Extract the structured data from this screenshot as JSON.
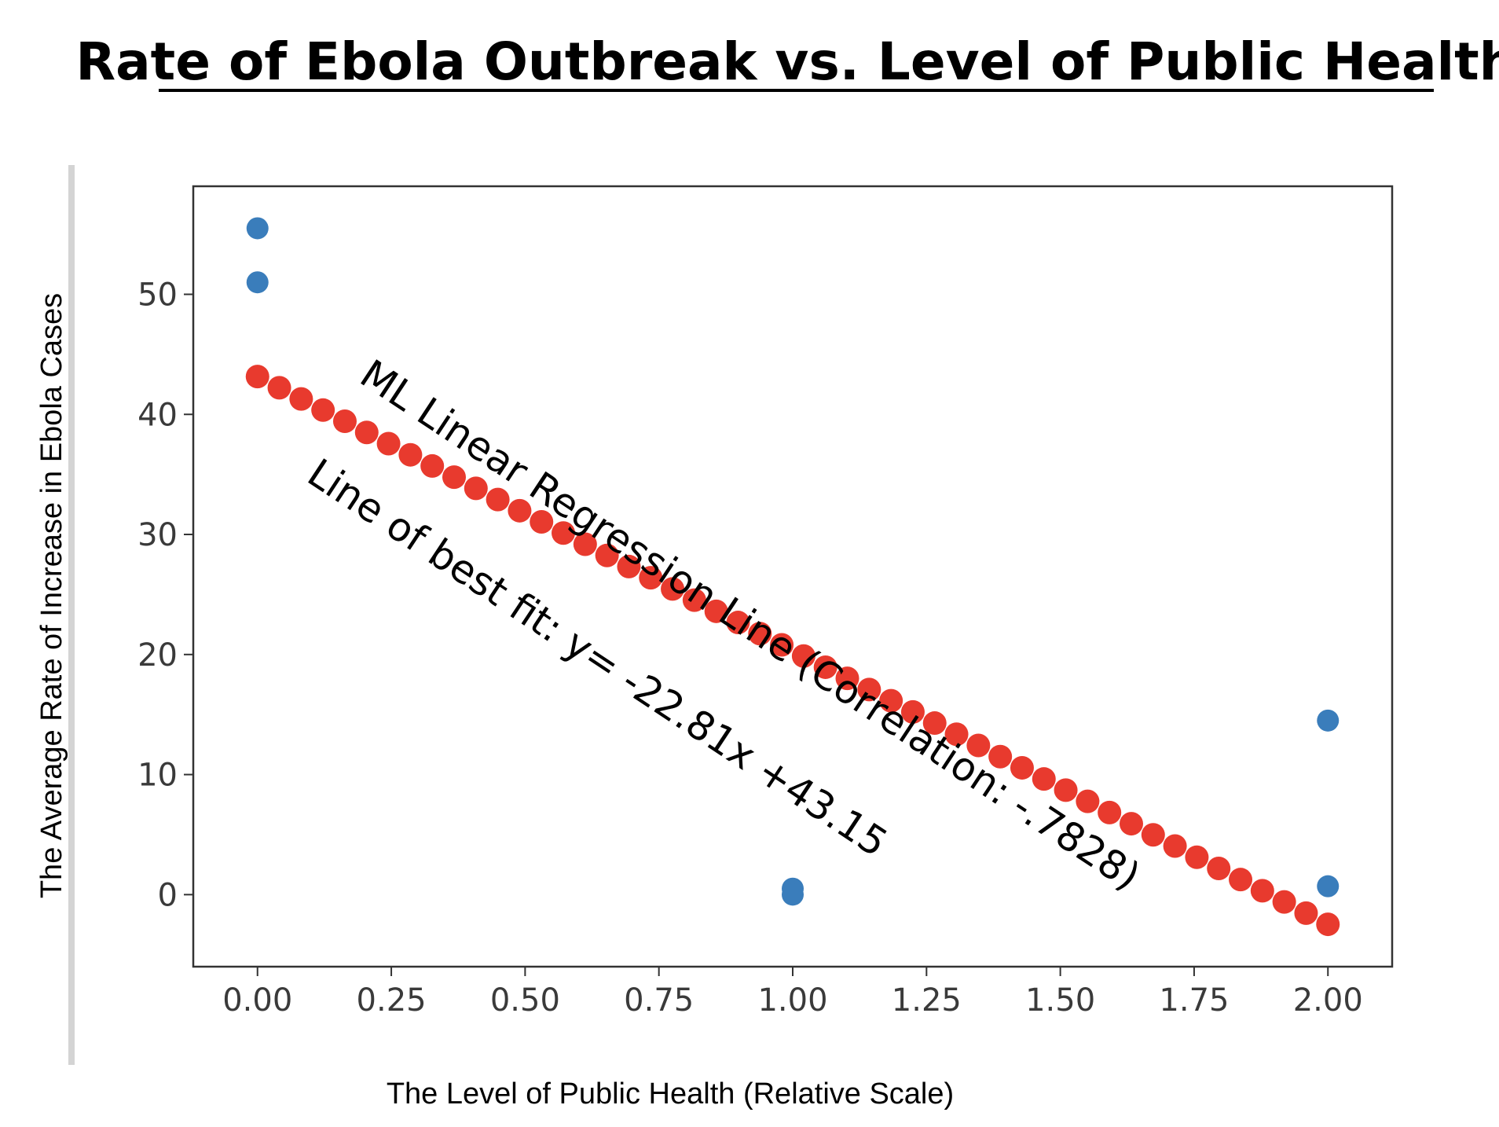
{
  "chart_data": {
    "type": "scatter",
    "title": "Rate of Ebola Outbreak vs. Level of Public Health",
    "xlabel": "The Level of Public Health (Relative Scale)",
    "ylabel": "The Average Rate of Increase in Ebola Cases",
    "xlim": [
      -0.12,
      2.12
    ],
    "ylim": [
      -6,
      59
    ],
    "x_ticks": [
      "0.00",
      "0.25",
      "0.50",
      "0.75",
      "1.00",
      "1.25",
      "1.50",
      "1.75",
      "2.00"
    ],
    "y_ticks": [
      "0",
      "10",
      "20",
      "30",
      "40",
      "50"
    ],
    "grid": false,
    "series": [
      {
        "kind": "points",
        "color": "#3a7dbb",
        "x": [
          0,
          0,
          1,
          1,
          2,
          2
        ],
        "y": [
          55.5,
          51.0,
          0.5,
          0.0,
          14.5,
          0.7
        ]
      },
      {
        "kind": "regression",
        "color": "#e83a2e",
        "slope": -22.81,
        "intercept": 43.15,
        "x_start": 0,
        "x_end": 2,
        "marker_count": 50
      }
    ],
    "annotations": [
      "ML Linear Regression Line (Correlation: -.7828)",
      "Line of best fit: y= -22.81x +43.15"
    ]
  }
}
